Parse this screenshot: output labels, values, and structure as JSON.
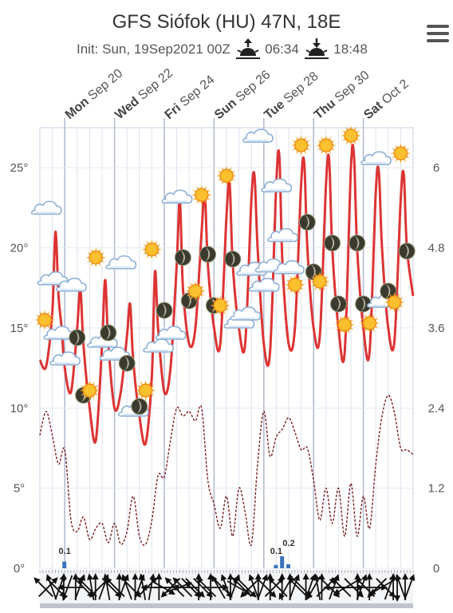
{
  "header": {
    "title": "GFS Siófok (HU) 47N, 18E",
    "init_text": "Init: Sun, 19Sep2021 00Z",
    "sunrise": "06:34",
    "sunset": "18:48",
    "sunrise_icon": "sunrise-icon",
    "sunset_icon": "sunset-icon",
    "menu_icon": "hamburger-menu-icon"
  },
  "colors": {
    "temperature": "#dd3333",
    "dewpoint": "#7a1e1e",
    "precip": "#3b73b9",
    "grid": "#c9cfe3",
    "wind_strip": "#bfc4cc"
  },
  "chart_data": {
    "type": "line",
    "x_unit": "hours since Sep 19 00Z",
    "day_labels": [
      {
        "day": "Mon",
        "date": "Sep 20"
      },
      {
        "day": "Wed",
        "date": "Sep 22"
      },
      {
        "day": "Fri",
        "date": "Sep 24"
      },
      {
        "day": "Sun",
        "date": "Sep 26"
      },
      {
        "day": "Tue",
        "date": "Sep 28"
      },
      {
        "day": "Thu",
        "date": "Sep 30"
      },
      {
        "day": "Sat",
        "date": "Oct 2"
      }
    ],
    "y_left": {
      "ticks": [
        "0°",
        "5°",
        "10°",
        "15°",
        "20°",
        "25°"
      ],
      "values": [
        0,
        5,
        10,
        15,
        20,
        25
      ],
      "range": [
        0,
        27.5
      ]
    },
    "y_right": {
      "ticks": [
        "0",
        "1.2",
        "2.4",
        "3.6",
        "4.8",
        "6"
      ],
      "values": [
        0,
        1.2,
        2.4,
        3.6,
        4.8,
        6
      ],
      "range": [
        0,
        6.6
      ]
    },
    "grid": true,
    "series": [
      {
        "key": "temperature",
        "values": [
          [
            0,
            13
          ],
          [
            6,
            12.6
          ],
          [
            12,
            16
          ],
          [
            15,
            21
          ],
          [
            18,
            17
          ],
          [
            21,
            15
          ],
          [
            24,
            12.5
          ],
          [
            30,
            11
          ],
          [
            36,
            15
          ],
          [
            39,
            17.5
          ],
          [
            42,
            14
          ],
          [
            48,
            10
          ],
          [
            54,
            8
          ],
          [
            60,
            14
          ],
          [
            63,
            18
          ],
          [
            66,
            14
          ],
          [
            72,
            10
          ],
          [
            78,
            11
          ],
          [
            84,
            14.5
          ],
          [
            87,
            16.5
          ],
          [
            90,
            13
          ],
          [
            96,
            9.5
          ],
          [
            102,
            7.8
          ],
          [
            108,
            12
          ],
          [
            111,
            18.5
          ],
          [
            114,
            15
          ],
          [
            120,
            11
          ],
          [
            126,
            12.5
          ],
          [
            132,
            19
          ],
          [
            135,
            23
          ],
          [
            138,
            17.5
          ],
          [
            144,
            14
          ],
          [
            150,
            15
          ],
          [
            156,
            21
          ],
          [
            159,
            23.5
          ],
          [
            162,
            19
          ],
          [
            168,
            15
          ],
          [
            174,
            14
          ],
          [
            180,
            22
          ],
          [
            183,
            24
          ],
          [
            186,
            19
          ],
          [
            192,
            15
          ],
          [
            198,
            14
          ],
          [
            204,
            23
          ],
          [
            207,
            24.5
          ],
          [
            210,
            20
          ],
          [
            216,
            14
          ],
          [
            222,
            13.5
          ],
          [
            228,
            24
          ],
          [
            231,
            25.7
          ],
          [
            234,
            19
          ],
          [
            240,
            14
          ],
          [
            246,
            15
          ],
          [
            252,
            24
          ],
          [
            255,
            25.3
          ],
          [
            258,
            20
          ],
          [
            264,
            15
          ],
          [
            270,
            14.5
          ],
          [
            276,
            24
          ],
          [
            279,
            25.5
          ],
          [
            282,
            20
          ],
          [
            288,
            15
          ],
          [
            294,
            13.5
          ],
          [
            300,
            25
          ],
          [
            303,
            25.7
          ],
          [
            306,
            20
          ],
          [
            312,
            15
          ],
          [
            318,
            13.5
          ],
          [
            324,
            23.5
          ],
          [
            327,
            24.7
          ],
          [
            330,
            20
          ],
          [
            336,
            15
          ],
          [
            342,
            14.2
          ],
          [
            348,
            23
          ],
          [
            351,
            24.6
          ],
          [
            354,
            20
          ],
          [
            360,
            17
          ]
        ]
      },
      {
        "key": "dewpoint",
        "values": [
          [
            0,
            8.3
          ],
          [
            6,
            9.8
          ],
          [
            12,
            8.3
          ],
          [
            18,
            6.5
          ],
          [
            24,
            7.4
          ],
          [
            30,
            3
          ],
          [
            36,
            2.3
          ],
          [
            42,
            3.2
          ],
          [
            48,
            1.8
          ],
          [
            54,
            2.5
          ],
          [
            60,
            2.8
          ],
          [
            66,
            1.6
          ],
          [
            72,
            2.8
          ],
          [
            78,
            1.5
          ],
          [
            84,
            2.3
          ],
          [
            90,
            4.5
          ],
          [
            96,
            2
          ],
          [
            102,
            1.5
          ],
          [
            108,
            3
          ],
          [
            114,
            5.8
          ],
          [
            120,
            5.7
          ],
          [
            126,
            8
          ],
          [
            132,
            10
          ],
          [
            138,
            9.5
          ],
          [
            144,
            9.8
          ],
          [
            150,
            9.2
          ],
          [
            156,
            10
          ],
          [
            162,
            5.5
          ],
          [
            168,
            4
          ],
          [
            174,
            2.5
          ],
          [
            180,
            4.5
          ],
          [
            186,
            2
          ],
          [
            192,
            5
          ],
          [
            198,
            3.5
          ],
          [
            204,
            1.5
          ],
          [
            210,
            6.5
          ],
          [
            216,
            9.8
          ],
          [
            222,
            7
          ],
          [
            228,
            8.2
          ],
          [
            234,
            8.7
          ],
          [
            240,
            9.4
          ],
          [
            246,
            8.5
          ],
          [
            252,
            7.4
          ],
          [
            258,
            7.5
          ],
          [
            264,
            5.5
          ],
          [
            270,
            3
          ],
          [
            276,
            5
          ],
          [
            282,
            2.8
          ],
          [
            288,
            5
          ],
          [
            294,
            2
          ],
          [
            300,
            5.3
          ],
          [
            306,
            2
          ],
          [
            312,
            4.5
          ],
          [
            318,
            2.5
          ],
          [
            324,
            6.5
          ],
          [
            330,
            9.5
          ],
          [
            336,
            10.8
          ],
          [
            342,
            9.7
          ],
          [
            348,
            7.5
          ],
          [
            354,
            7.4
          ],
          [
            360,
            7.1
          ]
        ]
      }
    ],
    "precip": {
      "bars": [
        [
          24,
          0.1
        ],
        [
          228,
          0.05
        ],
        [
          234,
          0.18
        ],
        [
          240,
          0.06
        ]
      ],
      "labels": [
        {
          "x": 24,
          "text": "0.1"
        },
        {
          "x": 228,
          "text": "0.1"
        },
        {
          "x": 240,
          "text": "0.2"
        }
      ]
    },
    "weather_icons": [
      {
        "x": 0,
        "t": 15.5,
        "icon": "sun-icon"
      },
      {
        "x": 6,
        "t": 22.4,
        "icon": "cloud-icon"
      },
      {
        "x": 12,
        "t": 18,
        "icon": "cloud-icon"
      },
      {
        "x": 18,
        "t": 14.6,
        "icon": "cloud-icon"
      },
      {
        "x": 24,
        "t": 13,
        "icon": "cloud-icon"
      },
      {
        "x": 30,
        "t": 17.6,
        "icon": "cloud-icon"
      },
      {
        "x": 36,
        "t": 14.4,
        "icon": "moon-icon"
      },
      {
        "x": 42,
        "t": 10.8,
        "icon": "moon-icon"
      },
      {
        "x": 48,
        "t": 11.1,
        "icon": "sun-icon"
      },
      {
        "x": 54,
        "t": 19.4,
        "icon": "sun-icon"
      },
      {
        "x": 60,
        "t": 14.1,
        "icon": "cloud-icon"
      },
      {
        "x": 66,
        "t": 14.7,
        "icon": "moon-icon"
      },
      {
        "x": 72,
        "t": 13.3,
        "icon": "cloud-icon"
      },
      {
        "x": 78,
        "t": 19,
        "icon": "cloud-icon"
      },
      {
        "x": 84,
        "t": 12.8,
        "icon": "moon-icon"
      },
      {
        "x": 90,
        "t": 9.8,
        "icon": "cloud-icon"
      },
      {
        "x": 96,
        "t": 10.1,
        "icon": "moon-icon"
      },
      {
        "x": 102,
        "t": 11.1,
        "icon": "sun-icon"
      },
      {
        "x": 108,
        "t": 19.9,
        "icon": "sun-icon"
      },
      {
        "x": 114,
        "t": 13.8,
        "icon": "cloud-icon"
      },
      {
        "x": 120,
        "t": 16.1,
        "icon": "moon-icon"
      },
      {
        "x": 126,
        "t": 14.6,
        "icon": "cloud-icon"
      },
      {
        "x": 132,
        "t": 23.1,
        "icon": "cloud-icon"
      },
      {
        "x": 138,
        "t": 19.4,
        "icon": "moon-icon"
      },
      {
        "x": 144,
        "t": 16.7,
        "icon": "moon-icon"
      },
      {
        "x": 150,
        "t": 17.3,
        "icon": "sun-icon"
      },
      {
        "x": 156,
        "t": 23.3,
        "icon": "sun-icon"
      },
      {
        "x": 162,
        "t": 19.6,
        "icon": "moon-icon"
      },
      {
        "x": 168,
        "t": 16.4,
        "icon": "moon-icon"
      },
      {
        "x": 174,
        "t": 16.4,
        "icon": "sun-icon"
      },
      {
        "x": 180,
        "t": 24.5,
        "icon": "sun-icon"
      },
      {
        "x": 186,
        "t": 19.3,
        "icon": "moon-icon"
      },
      {
        "x": 192,
        "t": 15.3,
        "icon": "cloud-icon"
      },
      {
        "x": 198,
        "t": 15.8,
        "icon": "cloud-icon"
      },
      {
        "x": 204,
        "t": 18.6,
        "icon": "cloud-icon"
      },
      {
        "x": 210,
        "t": 26.9,
        "icon": "cloud-icon"
      },
      {
        "x": 216,
        "t": 17.6,
        "icon": "cloud-icon"
      },
      {
        "x": 222,
        "t": 18.8,
        "icon": "cloud-icon"
      },
      {
        "x": 228,
        "t": 23.8,
        "icon": "cloud-icon"
      },
      {
        "x": 234,
        "t": 20.7,
        "icon": "cloud-icon"
      },
      {
        "x": 240,
        "t": 18.7,
        "icon": "cloud-icon"
      },
      {
        "x": 246,
        "t": 17.7,
        "icon": "sun-icon"
      },
      {
        "x": 252,
        "t": 26.4,
        "icon": "sun-icon"
      },
      {
        "x": 258,
        "t": 21.6,
        "icon": "moon-icon"
      },
      {
        "x": 264,
        "t": 18.5,
        "icon": "moon-icon"
      },
      {
        "x": 270,
        "t": 17.9,
        "icon": "sun-icon"
      },
      {
        "x": 276,
        "t": 26.4,
        "icon": "sun-icon"
      },
      {
        "x": 282,
        "t": 20.3,
        "icon": "moon-icon"
      },
      {
        "x": 288,
        "t": 16.5,
        "icon": "moon-icon"
      },
      {
        "x": 294,
        "t": 15.2,
        "icon": "sun-icon"
      },
      {
        "x": 300,
        "t": 27,
        "icon": "sun-icon"
      },
      {
        "x": 306,
        "t": 20.3,
        "icon": "moon-icon"
      },
      {
        "x": 312,
        "t": 16.5,
        "icon": "moon-icon"
      },
      {
        "x": 318,
        "t": 15.3,
        "icon": "sun-icon"
      },
      {
        "x": 324,
        "t": 25.5,
        "icon": "cloud-icon"
      },
      {
        "x": 330,
        "t": 16.6,
        "icon": "cloud-icon"
      },
      {
        "x": 336,
        "t": 17.3,
        "icon": "moon-icon"
      },
      {
        "x": 342,
        "t": 16.6,
        "icon": "sun-icon"
      },
      {
        "x": 348,
        "t": 25.9,
        "icon": "sun-icon"
      },
      {
        "x": 354,
        "t": 19.8,
        "icon": "moon-icon"
      }
    ],
    "wind_arrows_deg": [
      135,
      225,
      160,
      315,
      200,
      180,
      20,
      90,
      180,
      200,
      315,
      135,
      170,
      180,
      45,
      200,
      170,
      315,
      135,
      180,
      200,
      160,
      315,
      180,
      200,
      170,
      225,
      190,
      90,
      180,
      300,
      270,
      45,
      135,
      250,
      135,
      90,
      315,
      315,
      180,
      315,
      135,
      180,
      270,
      150,
      315,
      160,
      180,
      200,
      300,
      135,
      315,
      45,
      160,
      180,
      200,
      315,
      180,
      225,
      135,
      180,
      30,
      180,
      200,
      135,
      315,
      180,
      200,
      30,
      170,
      180,
      225,
      315,
      200,
      90,
      135,
      60,
      270,
      315,
      180,
      200,
      135,
      180,
      270,
      45,
      60,
      315,
      200,
      180,
      0,
      160,
      180,
      200
    ]
  }
}
